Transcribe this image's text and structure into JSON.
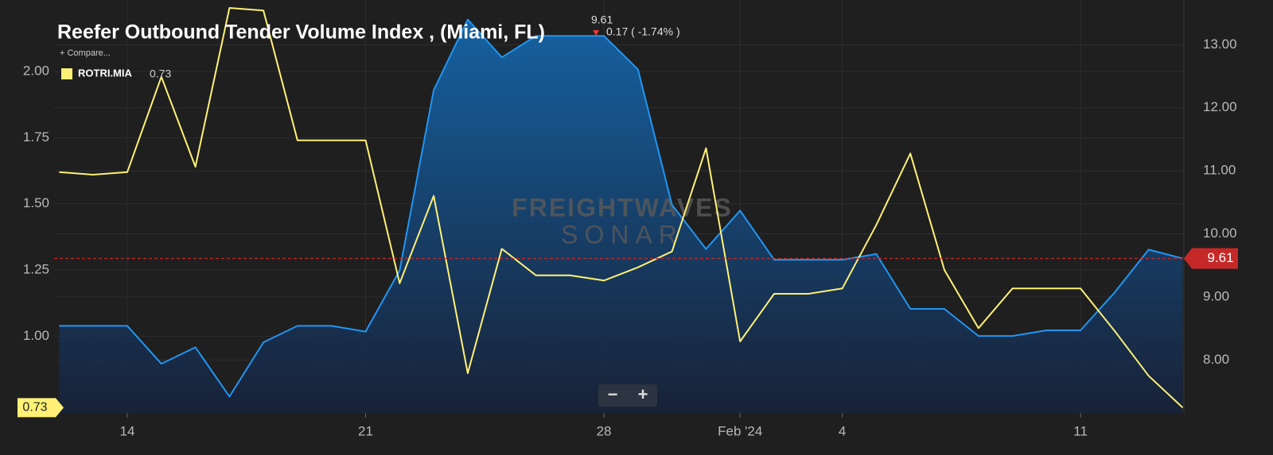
{
  "chart_data": {
    "type": "line",
    "title": "Reefer Outbound Tender Volume Index , (Miami, FL)",
    "change_label": "0.17 ( -1.74% )",
    "compare_label": "+ Compare...",
    "watermark": [
      "FREIGHTWAVES",
      "SONAR"
    ],
    "zoom_buttons": [
      "−",
      "+"
    ],
    "categories": [
      null,
      null,
      "14",
      null,
      null,
      null,
      null,
      null,
      null,
      "21",
      null,
      null,
      null,
      null,
      null,
      null,
      "28",
      null,
      null,
      null,
      "Feb '24",
      null,
      null,
      "4",
      null,
      null,
      null,
      null,
      null,
      null,
      "11",
      null,
      null,
      null
    ],
    "series": [
      {
        "color": "#2196f3",
        "axis": "y2",
        "area": true,
        "values": [
          8.54,
          8.54,
          8.54,
          7.94,
          8.2,
          7.42,
          8.28,
          8.54,
          8.54,
          8.45,
          9.42,
          12.28,
          13.4,
          12.8,
          13.14,
          13.14,
          13.14,
          12.61,
          10.46,
          9.76,
          10.37,
          9.59,
          9.59,
          9.59,
          9.68,
          8.81,
          8.81,
          8.38,
          8.38,
          8.47,
          8.47,
          9.07,
          9.75,
          9.61
        ]
      },
      {
        "name": "ROTRI.MIA",
        "color": "#fff176",
        "axis": "y",
        "values": [
          1.62,
          1.61,
          1.62,
          1.98,
          1.64,
          2.24,
          2.23,
          1.74,
          1.74,
          1.74,
          1.2,
          1.53,
          0.86,
          1.33,
          1.23,
          1.23,
          1.21,
          1.26,
          1.32,
          1.71,
          0.98,
          1.16,
          1.16,
          1.18,
          1.42,
          1.69,
          1.25,
          1.03,
          1.18,
          1.18,
          1.18,
          1.02,
          0.85,
          0.73
        ]
      }
    ],
    "ylim": [
      0.71,
      2.27
    ],
    "yticks": [
      {
        "value": 1,
        "label": "1.00"
      },
      {
        "value": 1.25,
        "label": "1.25"
      },
      {
        "value": 1.5,
        "label": "1.50"
      },
      {
        "value": 1.75,
        "label": "1.75"
      },
      {
        "value": 2,
        "label": "2.00"
      }
    ],
    "y2lim": [
      7.16,
      13.71
    ],
    "y2ticks": [
      {
        "value": 8,
        "label": "8.00"
      },
      {
        "value": 9,
        "label": "9.00"
      },
      {
        "value": 10,
        "label": "10.00"
      },
      {
        "value": 11,
        "label": "11.00"
      },
      {
        "value": 12,
        "label": "12.00"
      },
      {
        "value": 13,
        "label": "13.00"
      }
    ],
    "grid": true,
    "last_value_line_color": "#c62828"
  }
}
